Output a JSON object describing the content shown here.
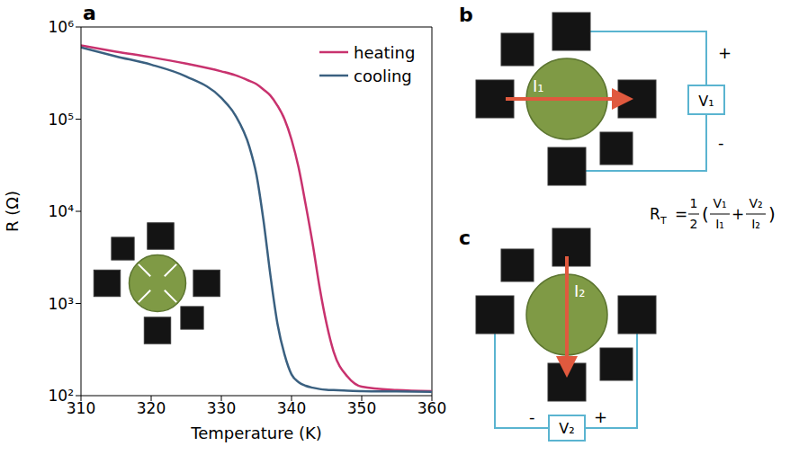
{
  "chart_data": {
    "type": "line",
    "title": "a",
    "x_label": "Temperature (K)",
    "y_label": "R (Ω)",
    "log": "y",
    "grid": false,
    "legend": "upper right",
    "x": [
      310,
      315,
      320,
      325,
      330,
      332,
      334,
      335,
      336,
      337,
      338,
      339,
      340,
      341,
      342,
      343,
      344,
      345,
      346,
      348,
      350,
      355,
      360
    ],
    "series": [
      {
        "name": "heating",
        "color": "#c8326e",
        "values": [
          630000,
          540000,
          470000,
          400000,
          330000,
          300000,
          260000,
          240000,
          210000,
          180000,
          140000,
          100000,
          60000,
          30000,
          12000,
          4500,
          1500,
          600,
          300,
          160,
          125,
          115,
          112
        ]
      },
      {
        "name": "cooling",
        "color": "#3a6080",
        "values": [
          600000,
          480000,
          390000,
          290000,
          170000,
          110000,
          50000,
          25000,
          8000,
          2000,
          600,
          280,
          170,
          140,
          128,
          122,
          118,
          116,
          115,
          113,
          112,
          111,
          110
        ]
      }
    ],
    "xlim": [
      310,
      360
    ],
    "xticks": [
      310,
      320,
      330,
      340,
      350,
      360
    ],
    "ylim": [
      100,
      1000000
    ],
    "yticks": [
      {
        "value": 100,
        "label": "10²"
      },
      {
        "value": 1000,
        "label": "10³"
      },
      {
        "value": 10000,
        "label": "10⁴"
      },
      {
        "value": 100000,
        "label": "10⁵"
      },
      {
        "value": 1000000,
        "label": "10⁶"
      }
    ]
  },
  "panels": [
    {
      "label": "b",
      "current": "I₁",
      "meter": "V₁",
      "plus": "+",
      "minus": "-"
    },
    {
      "label": "c",
      "current": "I₂",
      "meter": "V₂",
      "plus": "+",
      "minus": "-"
    }
  ],
  "formula": {
    "lhs": "R",
    "lhs_sub": "T",
    "equals": "=",
    "coef_num": "1",
    "coef_den": "2",
    "open": "(",
    "terms": [
      {
        "num": "V₁",
        "den": "I₁"
      },
      {
        "num": "V₂",
        "den": "I₂"
      }
    ],
    "plus": "+",
    "close": ")"
  }
}
